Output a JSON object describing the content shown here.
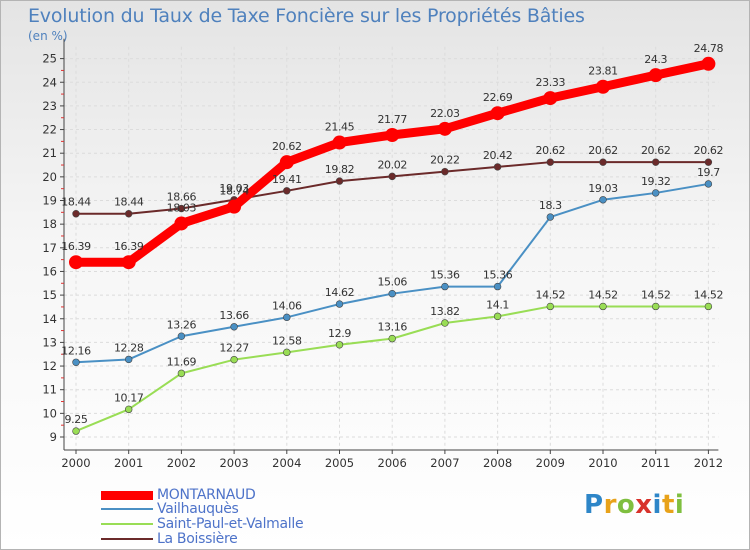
{
  "title": "Evolution du Taux de Taxe Foncière sur les Propriétés Bâties",
  "unit": "(en %)",
  "logo": {
    "text": "Proxiti",
    "letters": [
      {
        "c": "P",
        "color": "#2e86c8"
      },
      {
        "c": "r",
        "color": "#e8a21a"
      },
      {
        "c": "o",
        "color": "#7fbf3f"
      },
      {
        "c": "x",
        "color": "#d8322b"
      },
      {
        "c": "i",
        "color": "#2e86c8"
      },
      {
        "c": "t",
        "color": "#e8a21a"
      },
      {
        "c": "i",
        "color": "#7fbf3f"
      }
    ]
  },
  "chart_data": {
    "type": "line",
    "title": "Evolution du Taux de Taxe Foncière sur les Propriétés Bâties",
    "ylabel": "(en %)",
    "xlabel": "",
    "x": [
      2000,
      2001,
      2002,
      2003,
      2004,
      2005,
      2006,
      2007,
      2008,
      2009,
      2010,
      2011,
      2012
    ],
    "ylim": [
      9,
      25.5
    ],
    "yticks": [
      9,
      10,
      11,
      12,
      13,
      14,
      15,
      16,
      17,
      18,
      19,
      20,
      21,
      22,
      23,
      24,
      25
    ],
    "grid": true,
    "legend_position": "bottom-left",
    "series": [
      {
        "name": "MONTARNAUD",
        "color": "#ff0000",
        "values": [
          16.39,
          16.39,
          18.03,
          18.74,
          20.62,
          21.45,
          21.77,
          22.03,
          22.69,
          23.33,
          23.81,
          24.3,
          24.78
        ],
        "labels": [
          "16.39",
          "16.39",
          "18.03",
          "18.74",
          "20.62",
          "21.45",
          "21.77",
          "22.03",
          "22.69",
          "23.33",
          "23.81",
          "24.3",
          "24.78"
        ]
      },
      {
        "name": "Vailhauquès",
        "color": "#4a90c4",
        "values": [
          12.16,
          12.28,
          13.26,
          13.66,
          14.06,
          14.62,
          15.06,
          15.36,
          15.36,
          18.3,
          19.03,
          19.32,
          19.7
        ],
        "labels": [
          "12.16",
          "12.28",
          "13.26",
          "13.66",
          "14.06",
          "14.62",
          "15.06",
          "15.36",
          "15.36",
          "18.3",
          "19.03",
          "19.32",
          "19.7"
        ]
      },
      {
        "name": "Saint-Paul-et-Valmalle",
        "color": "#99dd55",
        "values": [
          9.25,
          10.17,
          11.69,
          12.27,
          12.58,
          12.9,
          13.16,
          13.82,
          14.1,
          14.52,
          14.52,
          14.52,
          14.52
        ],
        "labels": [
          "9.25",
          "10.17",
          "11.69",
          "12.27",
          "12.58",
          "12.9",
          "13.16",
          "13.82",
          "14.1",
          "14.52",
          "14.52",
          "14.52",
          "14.52"
        ]
      },
      {
        "name": "La Boissière",
        "color": "#6b2a2a",
        "values": [
          18.44,
          18.44,
          18.66,
          19.03,
          19.41,
          19.82,
          20.02,
          20.22,
          20.42,
          20.62,
          20.62,
          20.62,
          20.62
        ],
        "labels": [
          "18.44",
          "18.44",
          "18.66",
          "19.03",
          "19.41",
          "19.82",
          "20.02",
          "20.22",
          "20.42",
          "20.62",
          "20.62",
          "20.62",
          "20.62"
        ]
      }
    ]
  }
}
